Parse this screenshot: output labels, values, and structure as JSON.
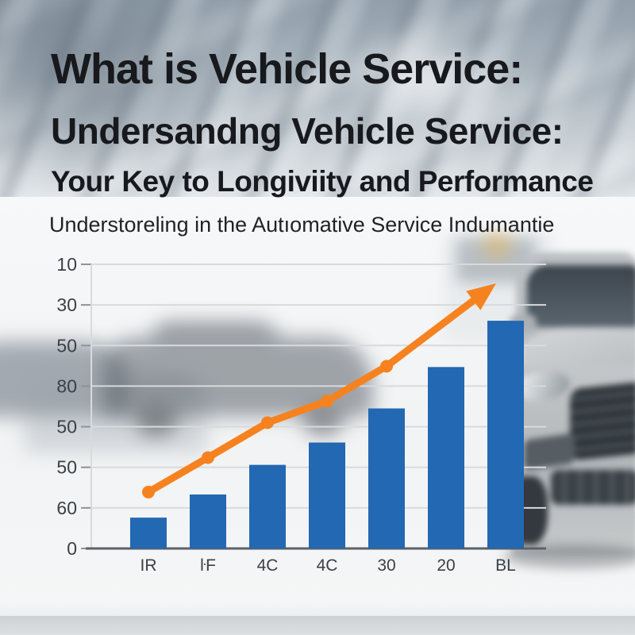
{
  "header": {
    "title_line1": "What is Vehicle Service:",
    "title_line2": "Undersandng Vehicle Service:",
    "title_line3": "Your Key to Longiviity and Performance",
    "subtitle": "Understoreling in the Autıomative Service Indumantie"
  },
  "colors": {
    "bar": "#2268b2",
    "trend": "#f6821f",
    "gridline": "#d8dadc",
    "axis": "#5d6268",
    "tick": "#8d9399",
    "axis_label": "#3a4046",
    "title_text": "#17191d"
  },
  "chart_data": {
    "type": "bar",
    "title": "",
    "xlabel": "",
    "ylabel": "",
    "categories": [
      "IR",
      "ŀF",
      "4C",
      "4C",
      "30",
      "20",
      "BL"
    ],
    "series": [
      {
        "name": "service-growth-bars",
        "type": "bar",
        "values": [
          7.6,
          13.3,
          20.6,
          26.1,
          34.5,
          44.7,
          56.1
        ]
      },
      {
        "name": "trend-arrow-line",
        "type": "line",
        "points": [
          {
            "x": 0,
            "y": 13.9
          },
          {
            "x": 1,
            "y": 22.4
          },
          {
            "x": 2,
            "y": 31.0
          },
          {
            "x": 3,
            "y": 36.3
          },
          {
            "x": 4,
            "y": 44.9
          }
        ],
        "arrow_end": {
          "x": 5.84,
          "y": 65.3
        }
      }
    ],
    "y_axis": {
      "tick_labels_top_to_bottom": [
        "10",
        "30",
        "50",
        "80",
        "50",
        "50",
        "60",
        "0"
      ],
      "range": [
        0,
        70
      ],
      "gridlines": true
    },
    "legend": "none"
  }
}
